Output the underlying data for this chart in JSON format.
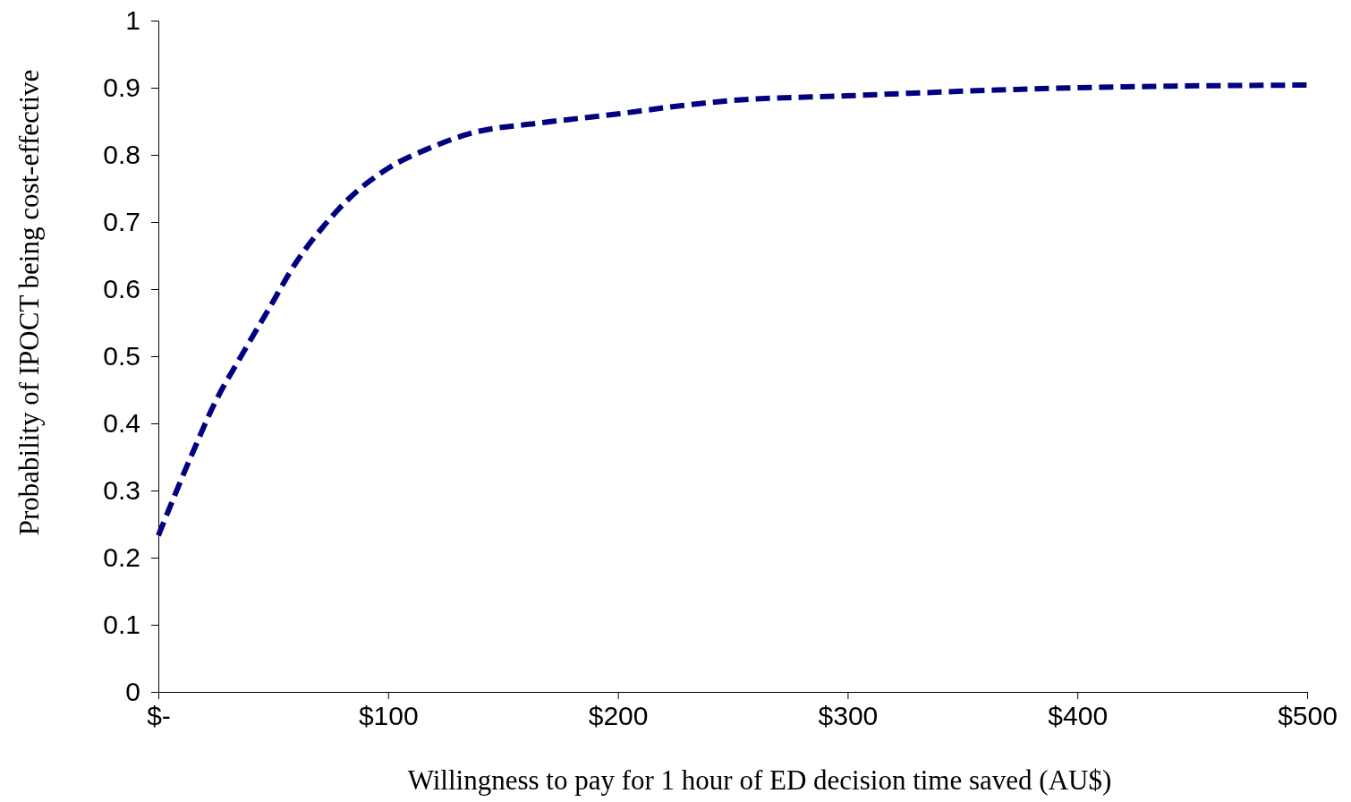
{
  "chart_data": {
    "type": "line",
    "xlabel": "Willingness to pay for 1 hour of ED decision time saved (AU$)",
    "ylabel": "Probability of IPOCT being cost-effective",
    "x": [
      0,
      15,
      24.5,
      36,
      48,
      60,
      71,
      83,
      100,
      118,
      137,
      165,
      200,
      227,
      250,
      300,
      360,
      400,
      500
    ],
    "series": [
      {
        "color": "#000080",
        "values": [
          0.233,
          0.357,
          0.43,
          0.5,
          0.57,
          0.64,
          0.69,
          0.735,
          0.78,
          0.81,
          0.833,
          0.847,
          0.861,
          0.873,
          0.881,
          0.888,
          0.896,
          0.9,
          0.904
        ]
      }
    ],
    "xlim": [
      0,
      500
    ],
    "xticks": [
      {
        "value": 0,
        "label": "$-"
      },
      {
        "value": 100,
        "label": "$100"
      },
      {
        "value": 200,
        "label": "$200"
      },
      {
        "value": 300,
        "label": "$300"
      },
      {
        "value": 400,
        "label": "$400"
      },
      {
        "value": 500,
        "label": "$500"
      }
    ],
    "ylim": [
      0,
      1
    ],
    "yticks": [
      0,
      0.1,
      0.2,
      0.3,
      0.4,
      0.5,
      0.6,
      0.7,
      0.8,
      0.9,
      1
    ],
    "grid": false,
    "marker": "none",
    "line_style": "dashed"
  }
}
